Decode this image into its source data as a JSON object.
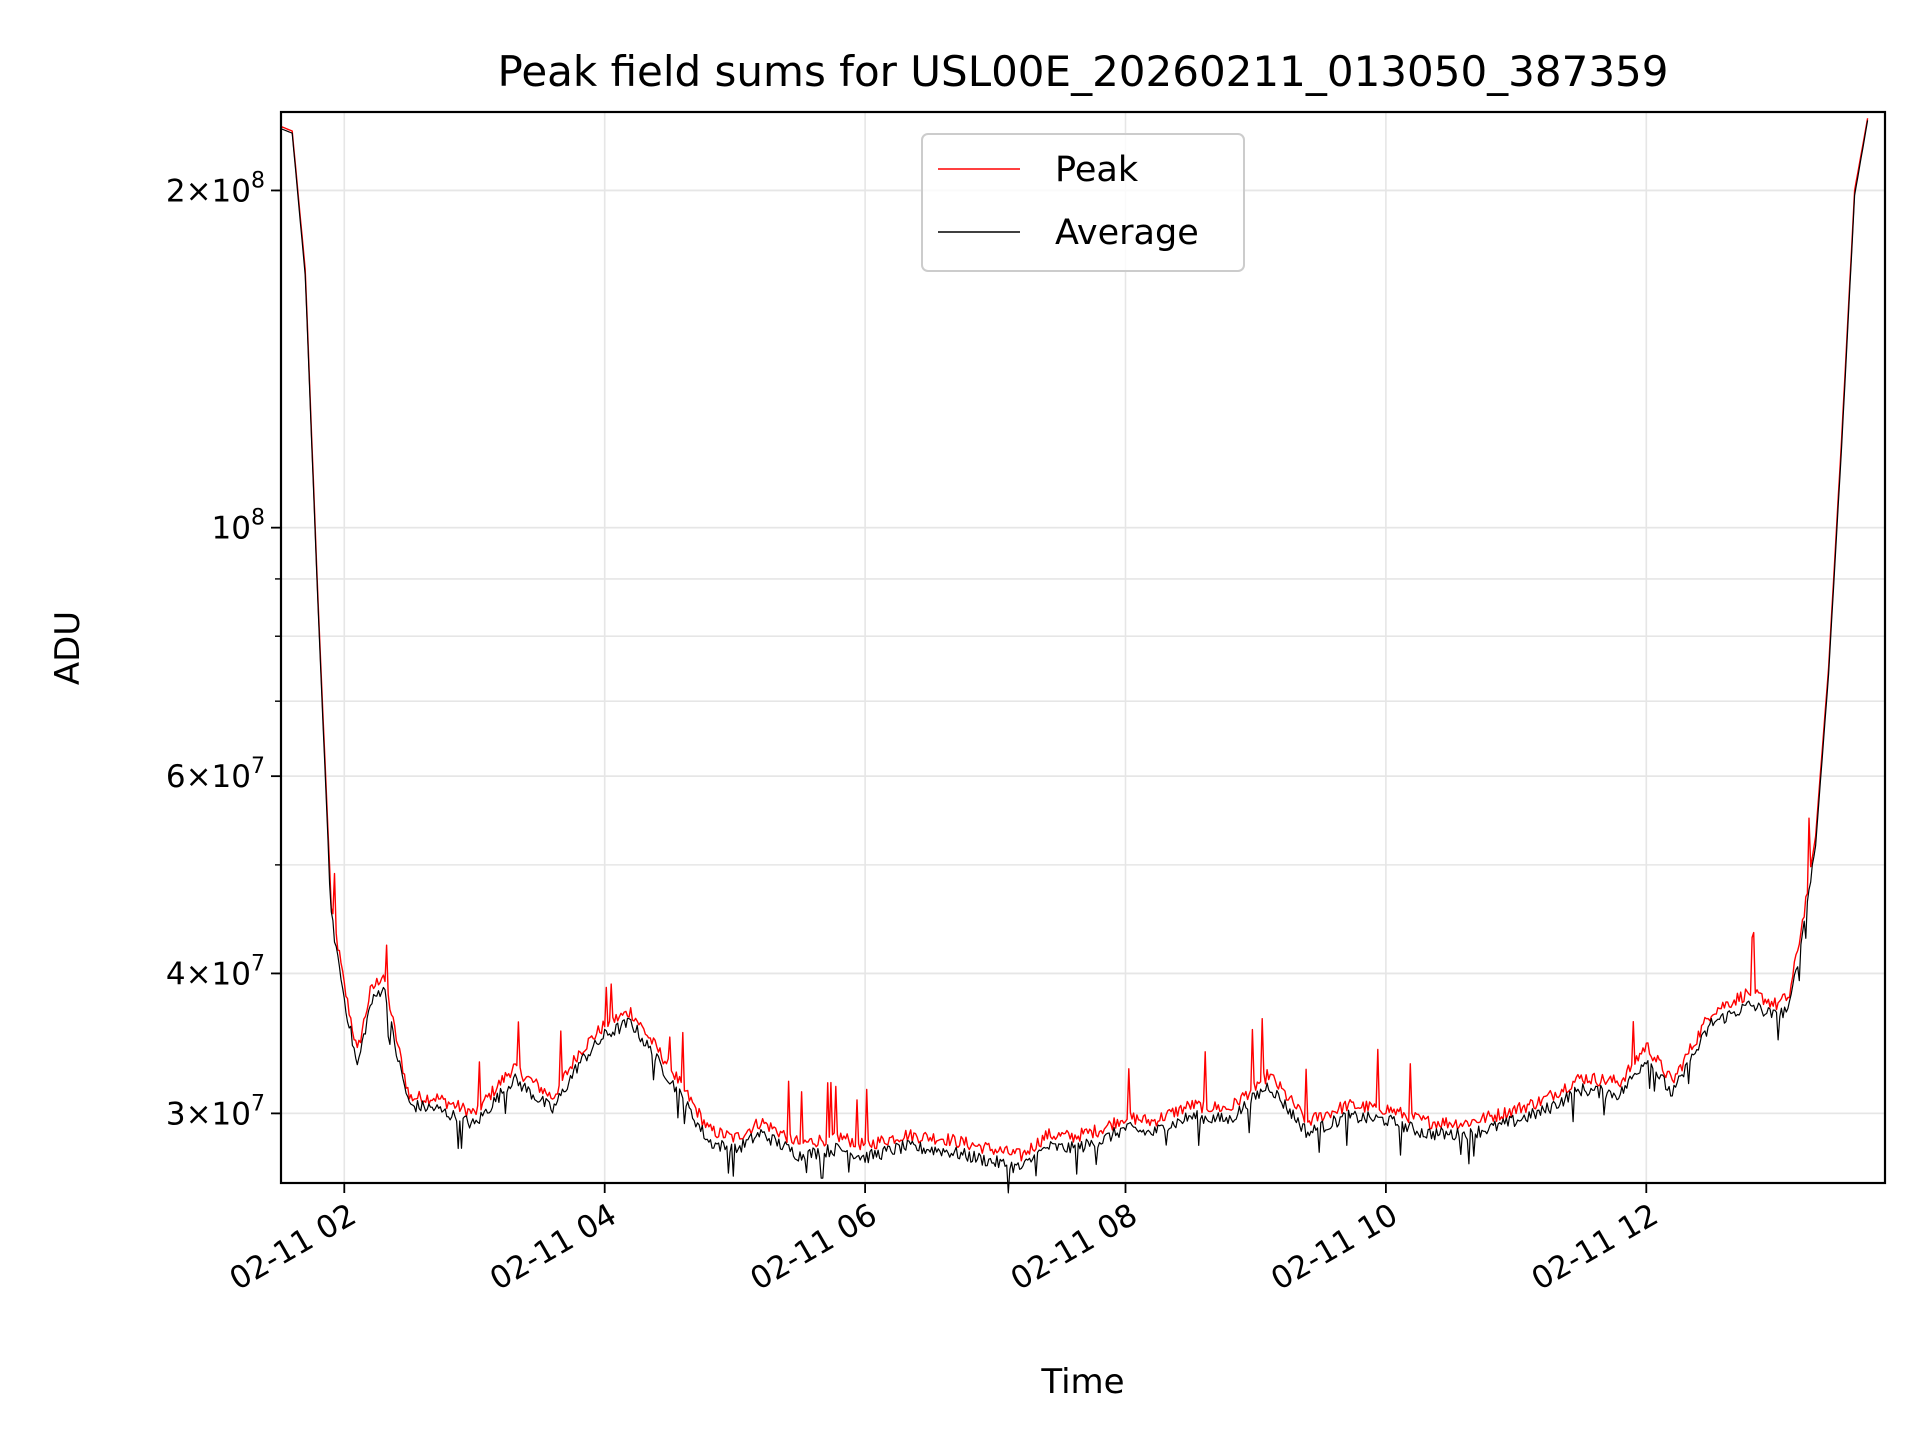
{
  "chart_data": {
    "type": "line",
    "title": "Peak field sums for USL00E_20260211_013050_387359",
    "xlabel": "Time",
    "ylabel": "ADU",
    "y_scale": "log",
    "grid": true,
    "legend_position": "top-center",
    "xlim": [
      "2026-02-11 01:30:50",
      "2026-02-11 13:50:00"
    ],
    "ylim": [
      26000000,
      235000000
    ],
    "x_ticks": [
      {
        "value": "2026-02-11 02:00",
        "label": "02-11 02"
      },
      {
        "value": "2026-02-11 04:00",
        "label": "02-11 04"
      },
      {
        "value": "2026-02-11 06:00",
        "label": "02-11 06"
      },
      {
        "value": "2026-02-11 08:00",
        "label": "02-11 08"
      },
      {
        "value": "2026-02-11 10:00",
        "label": "02-11 10"
      },
      {
        "value": "2026-02-11 12:00",
        "label": "02-11 12"
      }
    ],
    "y_ticks": [
      {
        "value": 30000000,
        "mantissa": "3",
        "exponent": "7"
      },
      {
        "value": 40000000,
        "mantissa": "4",
        "exponent": "7"
      },
      {
        "value": 60000000,
        "mantissa": "6",
        "exponent": "7"
      },
      {
        "value": 100000000,
        "mantissa": "",
        "exponent": "8"
      },
      {
        "value": 200000000,
        "mantissa": "2",
        "exponent": "8"
      }
    ],
    "x": [
      "2026-02-11 01:31",
      "2026-02-11 01:36",
      "2026-02-11 01:42",
      "2026-02-11 01:48",
      "2026-02-11 01:54",
      "2026-02-11 02:00",
      "2026-02-11 02:06",
      "2026-02-11 02:12",
      "2026-02-11 02:18",
      "2026-02-11 02:24",
      "2026-02-11 02:30",
      "2026-02-11 02:42",
      "2026-02-11 03:00",
      "2026-02-11 03:18",
      "2026-02-11 03:36",
      "2026-02-11 03:48",
      "2026-02-11 04:00",
      "2026-02-11 04:12",
      "2026-02-11 04:30",
      "2026-02-11 04:48",
      "2026-02-11 05:00",
      "2026-02-11 05:12",
      "2026-02-11 05:30",
      "2026-02-11 05:48",
      "2026-02-11 06:00",
      "2026-02-11 06:18",
      "2026-02-11 06:36",
      "2026-02-11 06:54",
      "2026-02-11 07:12",
      "2026-02-11 07:24",
      "2026-02-11 07:36",
      "2026-02-11 07:48",
      "2026-02-11 08:00",
      "2026-02-11 08:12",
      "2026-02-11 08:30",
      "2026-02-11 08:48",
      "2026-02-11 09:06",
      "2026-02-11 09:24",
      "2026-02-11 09:42",
      "2026-02-11 10:00",
      "2026-02-11 10:18",
      "2026-02-11 10:36",
      "2026-02-11 10:54",
      "2026-02-11 11:12",
      "2026-02-11 11:30",
      "2026-02-11 11:48",
      "2026-02-11 12:00",
      "2026-02-11 12:12",
      "2026-02-11 12:30",
      "2026-02-11 12:48",
      "2026-02-11 13:00",
      "2026-02-11 13:06",
      "2026-02-11 13:12",
      "2026-02-11 13:18",
      "2026-02-11 13:24",
      "2026-02-11 13:30",
      "2026-02-11 13:36",
      "2026-02-11 13:42"
    ],
    "series": [
      {
        "name": "Peak",
        "color": "#ff0000",
        "values": [
          228000000,
          226000000,
          170000000,
          85000000,
          46000000,
          39000000,
          34000000,
          38500000,
          40000000,
          35000000,
          31000000,
          31000000,
          30000000,
          33000000,
          31000000,
          34000000,
          36000000,
          37000000,
          33000000,
          29000000,
          28500000,
          29500000,
          28200000,
          28600000,
          28100000,
          28700000,
          28500000,
          28000000,
          27500000,
          28700000,
          28600000,
          29000000,
          29800000,
          29500000,
          30500000,
          30300000,
          32500000,
          29500000,
          30500000,
          30300000,
          29500000,
          29400000,
          30000000,
          30800000,
          32300000,
          32000000,
          34500000,
          32000000,
          37000000,
          38500000,
          37500000,
          38200000,
          44500000,
          53000000,
          75000000,
          120000000,
          200000000,
          232000000
        ]
      },
      {
        "name": "Average",
        "color": "#000000",
        "values": [
          227000000,
          225000000,
          168000000,
          84000000,
          45000000,
          38000000,
          33000000,
          37500000,
          39000000,
          34000000,
          30500000,
          30300000,
          29300000,
          32200000,
          30200000,
          33200000,
          35200000,
          36200000,
          32200000,
          28300000,
          27800000,
          28800000,
          27500000,
          27900000,
          27400000,
          28000000,
          27800000,
          27300000,
          26800000,
          28000000,
          27900000,
          28300000,
          29100000,
          28800000,
          29800000,
          29600000,
          31800000,
          28800000,
          29800000,
          29600000,
          28800000,
          28700000,
          29300000,
          30100000,
          31500000,
          31200000,
          33600000,
          31200000,
          36100000,
          37500000,
          36600000,
          37300000,
          43500000,
          52000000,
          74000000,
          118000000,
          198000000,
          231000000
        ]
      }
    ]
  }
}
